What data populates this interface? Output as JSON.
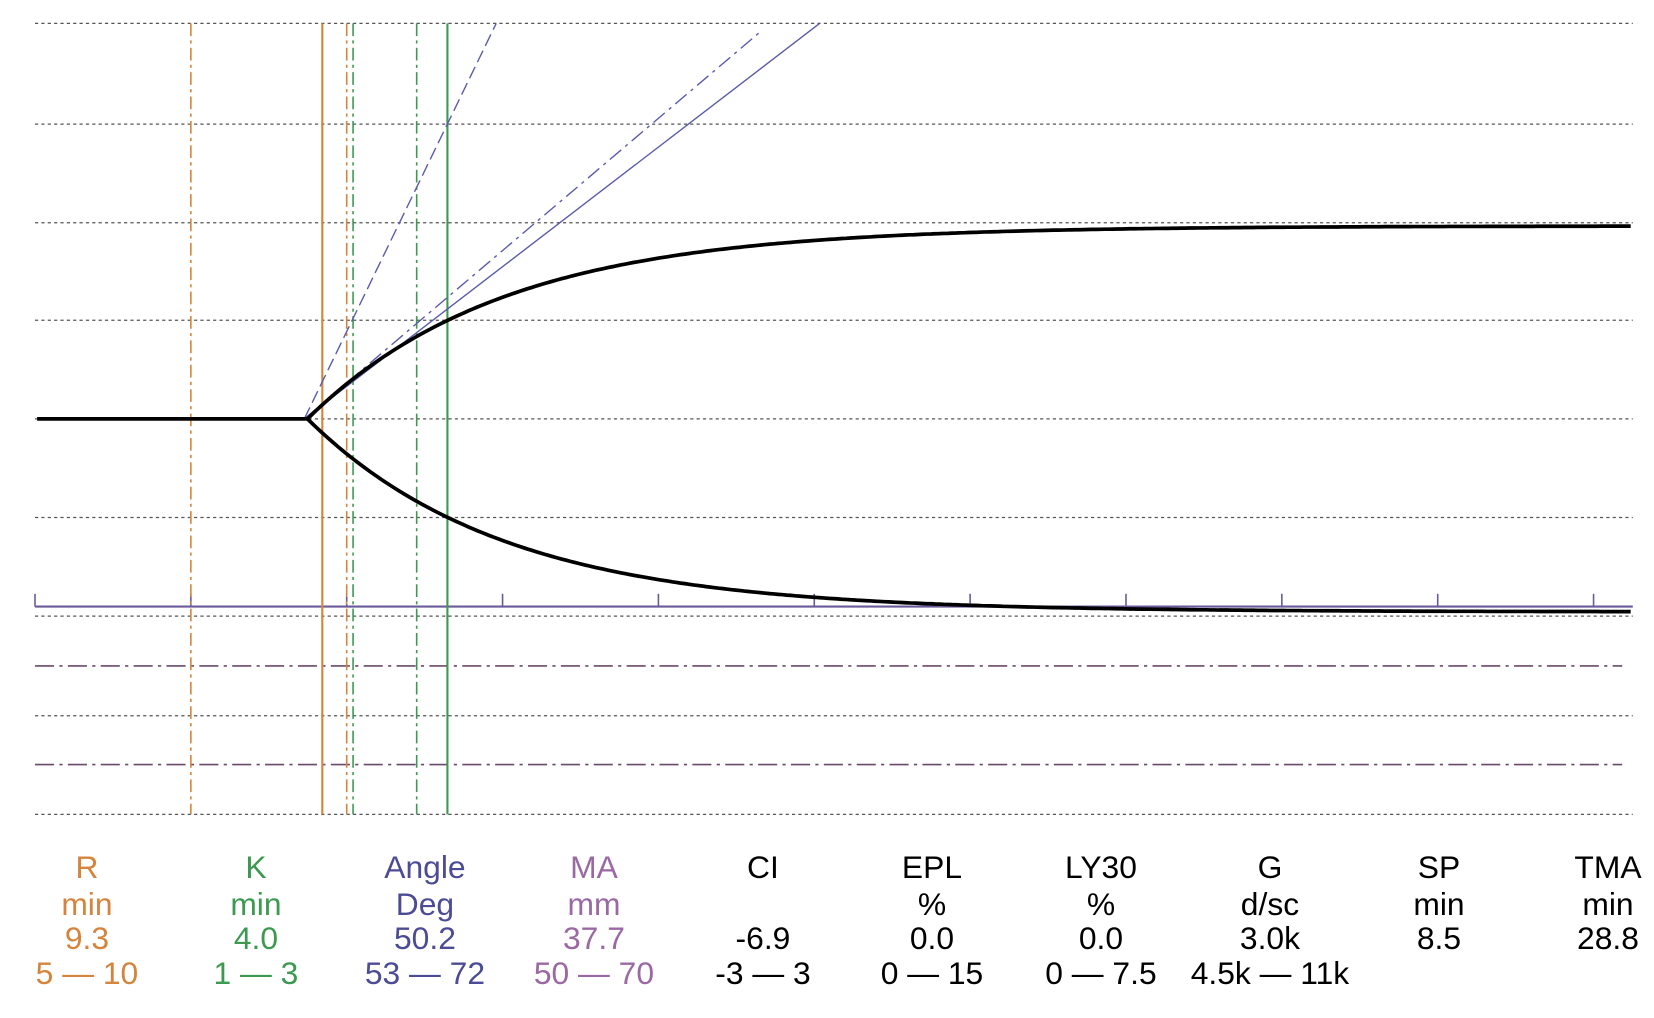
{
  "parameters": [
    {
      "name": "R",
      "unit": "min",
      "value": "9.3",
      "range": "5 — 10",
      "color": "#d4843c"
    },
    {
      "name": "K",
      "unit": "min",
      "value": "4.0",
      "range": "1 — 3",
      "color": "#3c9a50"
    },
    {
      "name": "Angle",
      "unit": "Deg",
      "value": "50.2",
      "range": "53 — 72",
      "color": "#4c4c96"
    },
    {
      "name": "MA",
      "unit": "mm",
      "value": "37.7",
      "range": "50 — 70",
      "color": "#9a68a2"
    },
    {
      "name": "CI",
      "value": "-6.9",
      "range": "-3 — 3",
      "color": "#000000"
    },
    {
      "name": "EPL",
      "unit": "%",
      "value": "0.0",
      "range": "0 — 15",
      "color": "#000000"
    },
    {
      "name": "LY30",
      "unit": "%",
      "value": "0.0",
      "range": "0 — 7.5",
      "color": "#000000"
    },
    {
      "name": "G",
      "unit": "d/sc",
      "value": "3.0k",
      "range": "4.5k — 11k",
      "color": "#000000"
    },
    {
      "name": "SP",
      "unit": "min",
      "value": "8.5",
      "color": "#000000"
    },
    {
      "name": "TMA",
      "unit": "min",
      "value": "28.8",
      "color": "#000000"
    }
  ]
}
